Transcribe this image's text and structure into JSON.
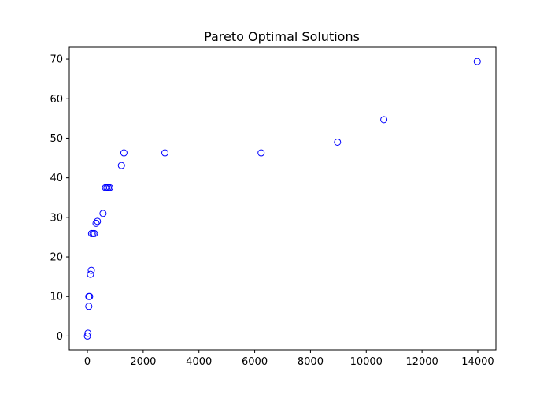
{
  "chart_data": {
    "type": "scatter",
    "title": "Pareto Optimal Solutions",
    "xlabel": "",
    "ylabel": "",
    "xlim": [
      -650,
      14650
    ],
    "ylim": [
      -3.5,
      73
    ],
    "xticks": [
      0,
      2000,
      4000,
      6000,
      8000,
      10000,
      12000,
      14000
    ],
    "yticks": [
      0,
      10,
      20,
      30,
      40,
      50,
      60,
      70
    ],
    "grid": false,
    "marker": "hollow-circle",
    "color": "#0000ff",
    "series": [
      {
        "points": [
          {
            "x": 0,
            "y": 0
          },
          {
            "x": 20,
            "y": 0.7
          },
          {
            "x": 50,
            "y": 7.5
          },
          {
            "x": 50,
            "y": 10
          },
          {
            "x": 80,
            "y": 10
          },
          {
            "x": 110,
            "y": 15.6
          },
          {
            "x": 140,
            "y": 16.6
          },
          {
            "x": 150,
            "y": 25.9
          },
          {
            "x": 200,
            "y": 25.9
          },
          {
            "x": 250,
            "y": 25.9
          },
          {
            "x": 310,
            "y": 28.5
          },
          {
            "x": 360,
            "y": 29
          },
          {
            "x": 560,
            "y": 31
          },
          {
            "x": 650,
            "y": 37.5
          },
          {
            "x": 700,
            "y": 37.5
          },
          {
            "x": 750,
            "y": 37.5
          },
          {
            "x": 800,
            "y": 37.5
          },
          {
            "x": 1220,
            "y": 43.1
          },
          {
            "x": 1310,
            "y": 46.3
          },
          {
            "x": 2780,
            "y": 46.3
          },
          {
            "x": 6230,
            "y": 46.3
          },
          {
            "x": 8970,
            "y": 49
          },
          {
            "x": 10630,
            "y": 54.7
          },
          {
            "x": 13980,
            "y": 69.4
          }
        ]
      }
    ]
  }
}
